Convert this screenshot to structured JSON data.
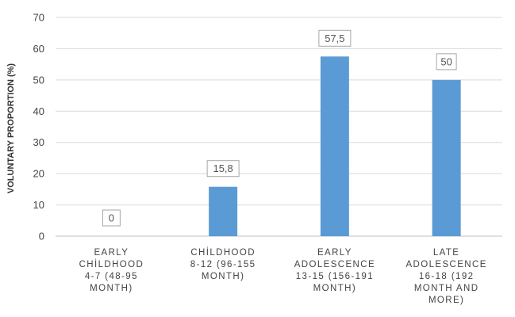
{
  "chart_data": {
    "type": "bar",
    "categories": [
      [
        "EARLY",
        "CHİLDHOOD",
        "4-7 (48-95",
        "MONTH)"
      ],
      [
        "CHİLDHOOD",
        "8-12 (96-155",
        "MONTH)"
      ],
      [
        "EARLY",
        "ADOLESCENCE",
        "13-15 (156-191",
        "MONTH)"
      ],
      [
        "LATE",
        "ADOLESCENCE",
        "16-18 (192",
        "MONTH AND",
        "MORE)"
      ]
    ],
    "values": [
      0,
      15.8,
      57.5,
      50
    ],
    "data_labels": [
      "0",
      "15,8",
      "57,5",
      "50"
    ],
    "ylabel": "VOLUNTARY PROPORTION (%)",
    "xlabel": "",
    "title": "",
    "ylim": [
      0,
      70
    ],
    "yticks": [
      0,
      10,
      20,
      30,
      40,
      50,
      60,
      70
    ],
    "grid": true,
    "legend": "none",
    "bar_color": "#5b9bd5",
    "grid_color": "#d9d9d9",
    "axis_color": "#bfbfbf"
  }
}
